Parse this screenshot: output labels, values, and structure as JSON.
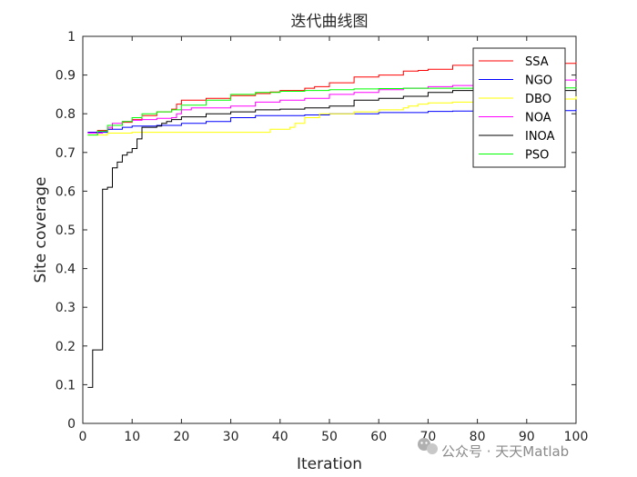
{
  "watermark": {
    "text": "公众号 · 天天Matlab",
    "icon": "wechat-icon"
  },
  "chart_data": {
    "type": "line",
    "title": "迭代曲线图",
    "xlabel": "Iteration",
    "ylabel": "Site coverage",
    "xlim": [
      0,
      100
    ],
    "ylim": [
      0,
      1
    ],
    "xticks": [
      "0",
      "10",
      "20",
      "30",
      "40",
      "50",
      "60",
      "70",
      "80",
      "90",
      "100"
    ],
    "yticks": [
      "0",
      "0.1",
      "0.2",
      "0.3",
      "0.4",
      "0.5",
      "0.6",
      "0.7",
      "0.8",
      "0.9",
      "1"
    ],
    "grid": false,
    "legend_position": "top-right",
    "series": [
      {
        "name": "SSA",
        "color": "#ff0000",
        "x": [
          1,
          3,
          5,
          6,
          8,
          10,
          12,
          15,
          18,
          19,
          20,
          25,
          30,
          35,
          38,
          40,
          45,
          47,
          50,
          55,
          60,
          65,
          68,
          70,
          75,
          80,
          90,
          100
        ],
        "y": [
          0.752,
          0.757,
          0.76,
          0.77,
          0.778,
          0.785,
          0.795,
          0.805,
          0.812,
          0.825,
          0.835,
          0.84,
          0.847,
          0.852,
          0.856,
          0.86,
          0.866,
          0.87,
          0.88,
          0.895,
          0.9,
          0.91,
          0.912,
          0.915,
          0.925,
          0.93,
          0.93,
          0.933
        ]
      },
      {
        "name": "NGO",
        "color": "#0000ff",
        "x": [
          1,
          5,
          8,
          10,
          15,
          20,
          25,
          30,
          35,
          40,
          45,
          50,
          55,
          60,
          65,
          70,
          75,
          80,
          90,
          100
        ],
        "y": [
          0.752,
          0.76,
          0.765,
          0.768,
          0.77,
          0.775,
          0.78,
          0.79,
          0.795,
          0.795,
          0.797,
          0.8,
          0.8,
          0.803,
          0.803,
          0.806,
          0.807,
          0.808,
          0.808,
          0.812
        ]
      },
      {
        "name": "DBO",
        "color": "#ffff00",
        "x": [
          1,
          5,
          10,
          15,
          20,
          25,
          30,
          35,
          37,
          38,
          40,
          42,
          43,
          45,
          48,
          50,
          55,
          60,
          65,
          66,
          68,
          70,
          75,
          80,
          90,
          100
        ],
        "y": [
          0.745,
          0.75,
          0.752,
          0.752,
          0.752,
          0.752,
          0.752,
          0.752,
          0.752,
          0.76,
          0.76,
          0.765,
          0.775,
          0.79,
          0.8,
          0.8,
          0.805,
          0.81,
          0.815,
          0.82,
          0.825,
          0.828,
          0.83,
          0.835,
          0.838,
          0.845
        ]
      },
      {
        "name": "NOA",
        "color": "#ff00ff",
        "x": [
          1,
          4,
          5,
          6,
          8,
          10,
          12,
          15,
          18,
          19,
          20,
          22,
          25,
          30,
          35,
          40,
          45,
          50,
          55,
          60,
          65,
          70,
          75,
          80,
          85,
          90,
          100
        ],
        "y": [
          0.75,
          0.755,
          0.765,
          0.775,
          0.78,
          0.783,
          0.785,
          0.788,
          0.79,
          0.8,
          0.81,
          0.815,
          0.815,
          0.82,
          0.83,
          0.835,
          0.84,
          0.85,
          0.855,
          0.862,
          0.866,
          0.87,
          0.873,
          0.878,
          0.884,
          0.887,
          0.89
        ]
      },
      {
        "name": "INOA",
        "color": "#000000",
        "x": [
          1,
          2,
          3,
          4,
          5,
          6,
          7,
          8,
          9,
          10,
          11,
          12,
          13,
          14,
          15,
          16,
          17,
          18,
          20,
          25,
          30,
          35,
          40,
          45,
          50,
          55,
          60,
          65,
          70,
          75,
          80,
          90,
          100
        ],
        "y": [
          0.093,
          0.19,
          0.19,
          0.605,
          0.61,
          0.66,
          0.675,
          0.693,
          0.7,
          0.71,
          0.735,
          0.765,
          0.765,
          0.765,
          0.768,
          0.775,
          0.78,
          0.785,
          0.792,
          0.8,
          0.805,
          0.81,
          0.812,
          0.815,
          0.82,
          0.835,
          0.84,
          0.845,
          0.855,
          0.86,
          0.86,
          0.86,
          0.865
        ]
      },
      {
        "name": "PSO",
        "color": "#00ff00",
        "x": [
          1,
          3,
          5,
          8,
          10,
          12,
          15,
          18,
          20,
          25,
          30,
          35,
          40,
          45,
          50,
          55,
          60,
          65,
          70,
          80,
          90,
          100
        ],
        "y": [
          0.745,
          0.755,
          0.77,
          0.78,
          0.79,
          0.8,
          0.805,
          0.81,
          0.822,
          0.835,
          0.85,
          0.855,
          0.858,
          0.86,
          0.862,
          0.864,
          0.865,
          0.866,
          0.866,
          0.867,
          0.867,
          0.868
        ]
      }
    ]
  }
}
